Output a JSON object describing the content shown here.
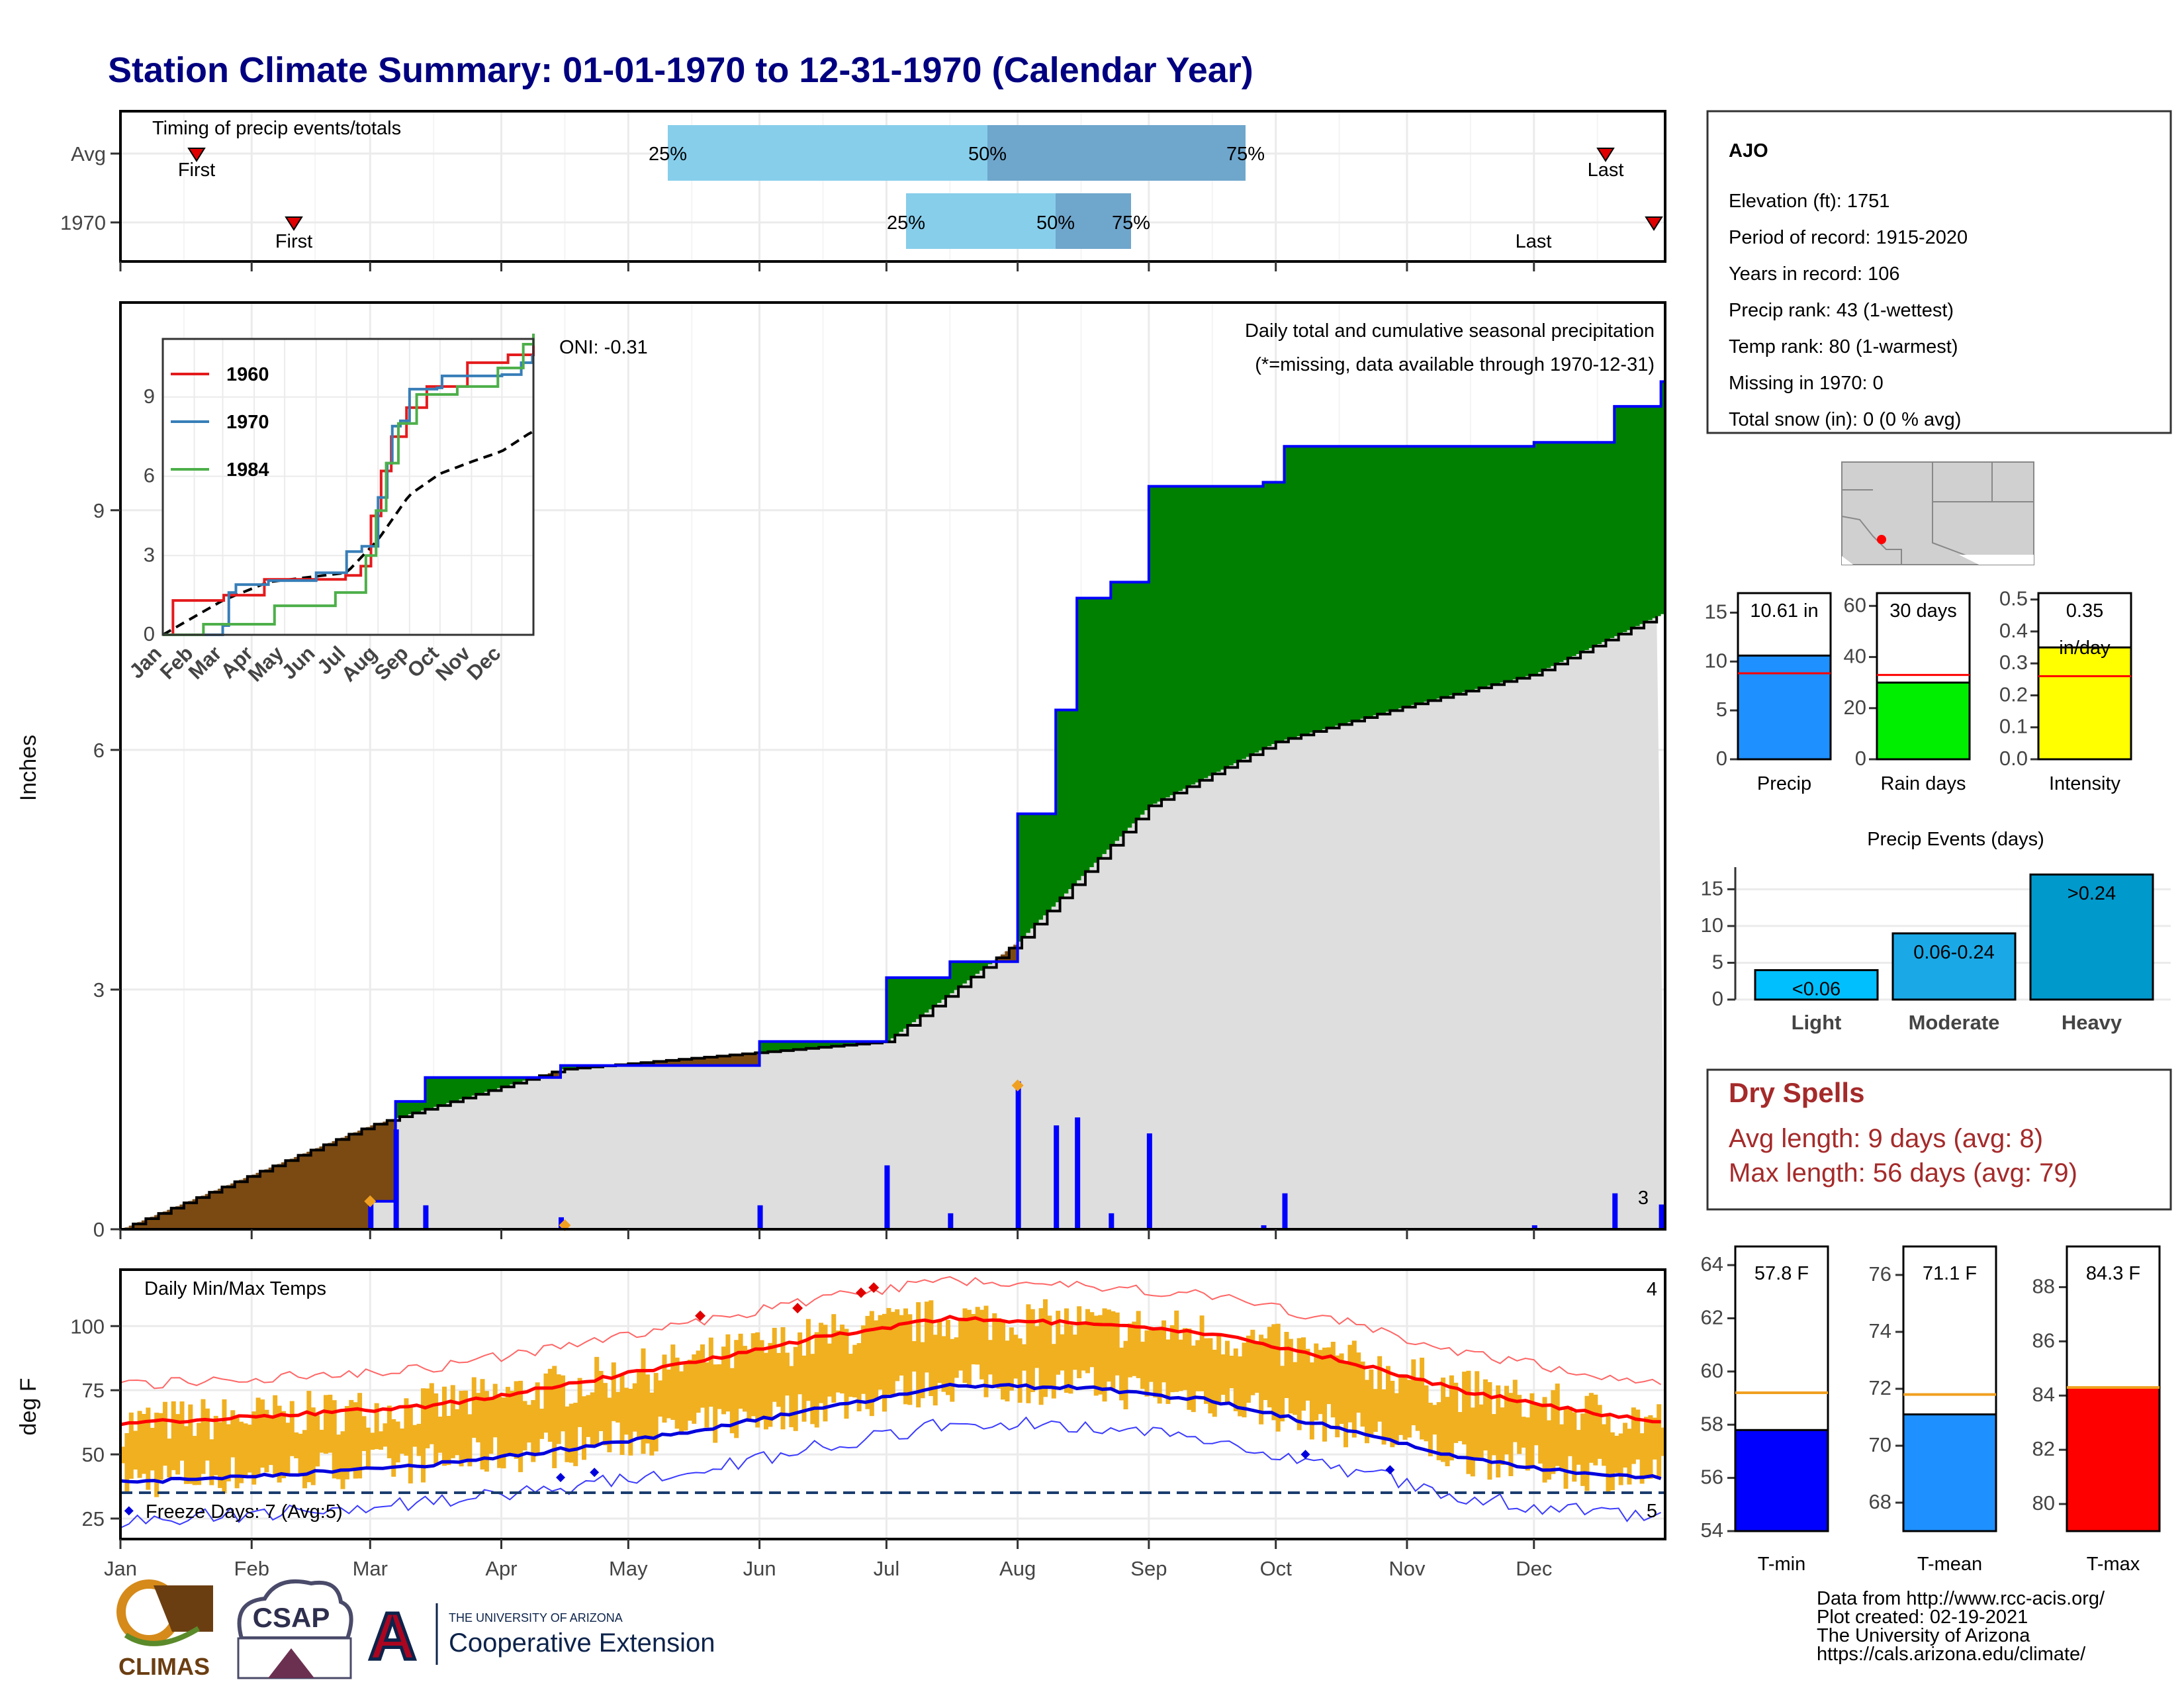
{
  "title": "Station Climate Summary: 01-01-1970 to 12-31-1970 (Calendar Year)",
  "colors": {
    "title": "#000080",
    "quartile_light": "#87ceeb",
    "quartile_dark": "#6fa6cc",
    "green": "#008000",
    "brown": "#7b4a12",
    "gray_fill": "#dedede",
    "blue_line": "#0000ff",
    "orange": "#f0b020",
    "red": "#ff0000",
    "dark_red": "#a52a2a"
  },
  "timing_panel": {
    "caption": "Timing of precip events/totals",
    "rows": [
      {
        "label": "Avg",
        "first_label": "First",
        "last_label": "Last",
        "q25": "25%",
        "q50": "50%",
        "q75": "75%"
      },
      {
        "label": "1970",
        "first_label": "First",
        "last_label": "Last",
        "q25": "25%",
        "q50": "50%",
        "q75": "75%"
      }
    ]
  },
  "months": [
    "Jan",
    "Feb",
    "Mar",
    "Apr",
    "May",
    "Jun",
    "Jul",
    "Aug",
    "Sep",
    "Oct",
    "Nov",
    "Dec"
  ],
  "precip_panel": {
    "ylabel": "Inches",
    "yticks": [
      "0",
      "3",
      "6",
      "9"
    ],
    "caption": "Daily total and cumulative seasonal precipitation",
    "missing_note": "(*=missing, data available through 1970-12-31)",
    "oni": "ONI: -0.31",
    "corner_count": "3"
  },
  "inset": {
    "yticks": [
      "0",
      "3",
      "6",
      "9"
    ],
    "xticks": [
      "Jan",
      "Feb",
      "Mar",
      "Apr",
      "May",
      "Jun",
      "Jul",
      "Aug",
      "Sep",
      "Oct",
      "Nov",
      "Dec"
    ],
    "legend": [
      "1960",
      "1970",
      "1984"
    ]
  },
  "temp_panel": {
    "caption": "Daily Min/Max Temps",
    "ylabel": "deg F",
    "yticks": [
      "25",
      "50",
      "75",
      "100"
    ],
    "freeze_text": "Freeze Days: 7 (Avg:5)",
    "count_high": "4",
    "count_low": "5"
  },
  "station": {
    "name": "AJO",
    "lines": [
      "Elevation (ft): 1751",
      "Period of record: 1915-2020",
      "Years in record: 106",
      "Precip rank: 43 (1-wettest)",
      "Temp rank: 80 (1-warmest)",
      "Missing in 1970: 0",
      "Total snow (in): 0 (0 % avg)"
    ]
  },
  "summary_bars": [
    {
      "label": "Precip",
      "value_text": "10.61 in",
      "yticks": [
        "0",
        "5",
        "10",
        "15"
      ]
    },
    {
      "label": "Rain days",
      "value_text": "30 days",
      "yticks": [
        "0",
        "20",
        "40",
        "60"
      ]
    },
    {
      "label": "Intensity",
      "value_text": "0.35",
      "value_unit": "in/day",
      "yticks": [
        "0.0",
        "0.1",
        "0.2",
        "0.3",
        "0.4",
        "0.5"
      ]
    }
  ],
  "events": {
    "title": "Precip Events (days)",
    "yticks": [
      "0",
      "5",
      "10",
      "15"
    ],
    "bars": [
      {
        "label": "Light",
        "text": "<0.06"
      },
      {
        "label": "Moderate",
        "text": "0.06-0.24"
      },
      {
        "label": "Heavy",
        "text": ">0.24"
      }
    ]
  },
  "dry_spells": {
    "title": "Dry Spells",
    "avg_line": "Avg length: 9 days (avg: 8)",
    "max_line": "Max length: 56 days (avg: 79)"
  },
  "temp_bars": [
    {
      "label": "T-min",
      "value_text": "57.8 F",
      "yticks": [
        "54",
        "56",
        "58",
        "60",
        "62",
        "64"
      ]
    },
    {
      "label": "T-mean",
      "value_text": "71.1 F",
      "yticks": [
        "68",
        "70",
        "72",
        "74",
        "76"
      ]
    },
    {
      "label": "T-max",
      "value_text": "84.3 F",
      "yticks": [
        "80",
        "82",
        "84",
        "86",
        "88"
      ]
    }
  ],
  "footer": [
    "Data from http://www.rcc-acis.org/",
    "Plot created: 02-19-2021",
    "The University of Arizona",
    "https://cals.arizona.edu/climate/"
  ],
  "logos": {
    "climas": "CLIMAS",
    "csap": "CSAP",
    "ua_small": "THE UNIVERSITY OF ARIZONA",
    "ua_big": "Cooperative Extension",
    "ua_letter": "A"
  },
  "chart_data": [
    {
      "type": "line",
      "title": "Daily total and cumulative seasonal precipitation",
      "ylabel": "Inches",
      "ylim": [
        0,
        11.6
      ],
      "series": [
        {
          "name": "1970",
          "x": [
            "Jan 1",
            "Mar 1",
            "Mar 7",
            "Mar 14",
            "Apr 15",
            "Jun 1",
            "Jul 1",
            "Jul 16",
            "Aug 1",
            "Aug 10",
            "Aug 15",
            "Aug 23",
            "Sep 1",
            "Sep 28",
            "Oct 3",
            "Dec 1",
            "Dec 20",
            "Dec 31"
          ],
          "values": [
            0,
            0.35,
            1.6,
            1.9,
            2.05,
            2.35,
            3.15,
            3.35,
            5.2,
            6.5,
            7.9,
            8.1,
            9.3,
            9.35,
            9.8,
            9.85,
            10.3,
            10.61
          ]
        },
        {
          "name": "Avg",
          "x": [
            "Jan 1",
            "Mar 1",
            "Apr 15",
            "Jul 1",
            "Aug 1",
            "Sep 1",
            "Oct 1",
            "Nov 1",
            "Dec 1",
            "Dec 31"
          ],
          "values": [
            0,
            1.3,
            2.0,
            2.35,
            3.6,
            5.3,
            6.1,
            6.55,
            6.95,
            7.7
          ]
        }
      ]
    },
    {
      "type": "line",
      "title": "Daily Min/Max Temps",
      "ylabel": "deg F",
      "x": [
        "Jan",
        "Feb",
        "Mar",
        "Apr",
        "May",
        "Jun",
        "Jul",
        "Aug",
        "Sep",
        "Oct",
        "Nov",
        "Dec",
        "Dec 31"
      ],
      "series": [
        {
          "name": "Avg max",
          "values": [
            62,
            66,
            69,
            77,
            86,
            96,
            103,
            101,
            97,
            87,
            74,
            66,
            63
          ]
        },
        {
          "name": "Avg min",
          "values": [
            39,
            43,
            46,
            52,
            59,
            68,
            77,
            76,
            71,
            60,
            48,
            42,
            41
          ]
        }
      ]
    },
    {
      "type": "bar",
      "categories": [
        "Light",
        "Moderate",
        "Heavy"
      ],
      "values": [
        4,
        9,
        17
      ],
      "ylim": [
        0,
        18
      ],
      "title": "Precip Events (days)"
    },
    {
      "type": "bar",
      "categories": [
        "Precip",
        "Rain days",
        "Intensity"
      ],
      "values": [
        10.61,
        30,
        0.35
      ],
      "averages": [
        8.8,
        33,
        0.26
      ]
    },
    {
      "type": "bar",
      "categories": [
        "T-min",
        "T-mean",
        "T-max"
      ],
      "values": [
        57.8,
        71.1,
        84.3
      ],
      "averages": [
        59.2,
        71.8,
        84.3
      ]
    }
  ]
}
